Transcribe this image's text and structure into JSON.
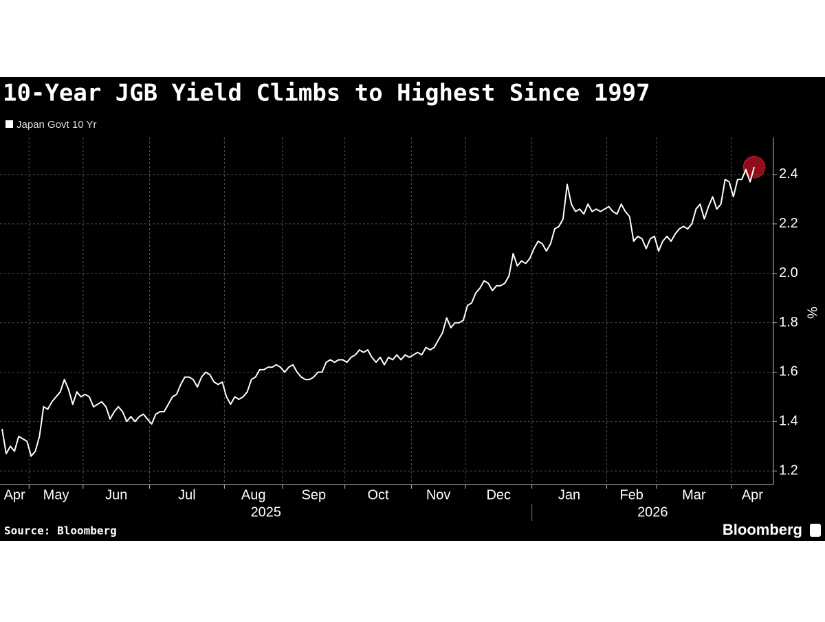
{
  "chart_data": {
    "type": "line",
    "title": "10-Year JGB Yield Climbs to Highest Since 1997",
    "y_label": "%",
    "source": "Source: Bloomberg",
    "brand": "Bloomberg",
    "ylim": [
      1.145,
      2.55
    ],
    "yticks": [
      1.2,
      1.4,
      1.6,
      1.8,
      {
        "value": 2,
        "label": "2.0"
      },
      2.2,
      2.4
    ],
    "grid": true,
    "marker_color": "#b3121f",
    "years": [
      {
        "label": "2025",
        "months": [
          "Apr",
          "May",
          "Jun",
          "Jul",
          "Aug",
          "Sep",
          "Oct",
          "Nov",
          "Dec"
        ]
      },
      {
        "label": "2026",
        "months": [
          "Jan",
          "Feb",
          "Mar",
          "Apr"
        ]
      }
    ],
    "series": [
      {
        "name": "Japan Govt 10 Yr",
        "color": "#ffffff",
        "values": [
          [
            1.37,
            1.27,
            1.3,
            1.28,
            1.34,
            1.33,
            1.32
          ],
          [
            1.26,
            1.28,
            1.34,
            1.46,
            1.45,
            1.48,
            1.5,
            1.52,
            1.57,
            1.53,
            1.47,
            1.52,
            1.5
          ],
          [
            1.51,
            1.5,
            1.46,
            1.47,
            1.48,
            1.46,
            1.41,
            1.44,
            1.46,
            1.44,
            1.4,
            1.42,
            1.4,
            1.42,
            1.43,
            1.41
          ],
          [
            1.39,
            1.43,
            1.44,
            1.44,
            1.47,
            1.5,
            1.51,
            1.55,
            1.58,
            1.58,
            1.57,
            1.54,
            1.58,
            1.6,
            1.59,
            1.56,
            1.55,
            1.56
          ],
          [
            1.5,
            1.47,
            1.5,
            1.49,
            1.5,
            1.52,
            1.57,
            1.58,
            1.61,
            1.61,
            1.62,
            1.62,
            1.63,
            1.62
          ],
          [
            1.6,
            1.62,
            1.63,
            1.6,
            1.58,
            1.57,
            1.57,
            1.58,
            1.6,
            1.6,
            1.64,
            1.65,
            1.64,
            1.65,
            1.65
          ],
          [
            1.64,
            1.66,
            1.67,
            1.69,
            1.68,
            1.69,
            1.66,
            1.64,
            1.66,
            1.63,
            1.66,
            1.65,
            1.67,
            1.65,
            1.67,
            1.66
          ],
          [
            1.67,
            1.68,
            1.67,
            1.7,
            1.69,
            1.7,
            1.73,
            1.76,
            1.82,
            1.78,
            1.8,
            1.8,
            1.81
          ],
          [
            1.87,
            1.88,
            1.92,
            1.94,
            1.97,
            1.96,
            1.93,
            1.95,
            1.95,
            1.96,
            1.99,
            2.08,
            2.03,
            2.05,
            2.04,
            2.06
          ],
          [
            2.1,
            2.13,
            2.12,
            2.09,
            2.12,
            2.18,
            2.19,
            2.22,
            2.36,
            2.28,
            2.25,
            2.26,
            2.24,
            2.28,
            2.25,
            2.26,
            2.25,
            2.26
          ],
          [
            2.27,
            2.25,
            2.24,
            2.28,
            2.25,
            2.23,
            2.13,
            2.15,
            2.14,
            2.1,
            2.14,
            2.15
          ],
          [
            2.09,
            2.13,
            2.15,
            2.13,
            2.16,
            2.18,
            2.19,
            2.18,
            2.2,
            2.26,
            2.28,
            2.22,
            2.27,
            2.31,
            2.26,
            2.28,
            2.38,
            2.37
          ],
          [
            2.31,
            2.38,
            2.38,
            2.42,
            2.37,
            2.43
          ]
        ]
      }
    ]
  }
}
